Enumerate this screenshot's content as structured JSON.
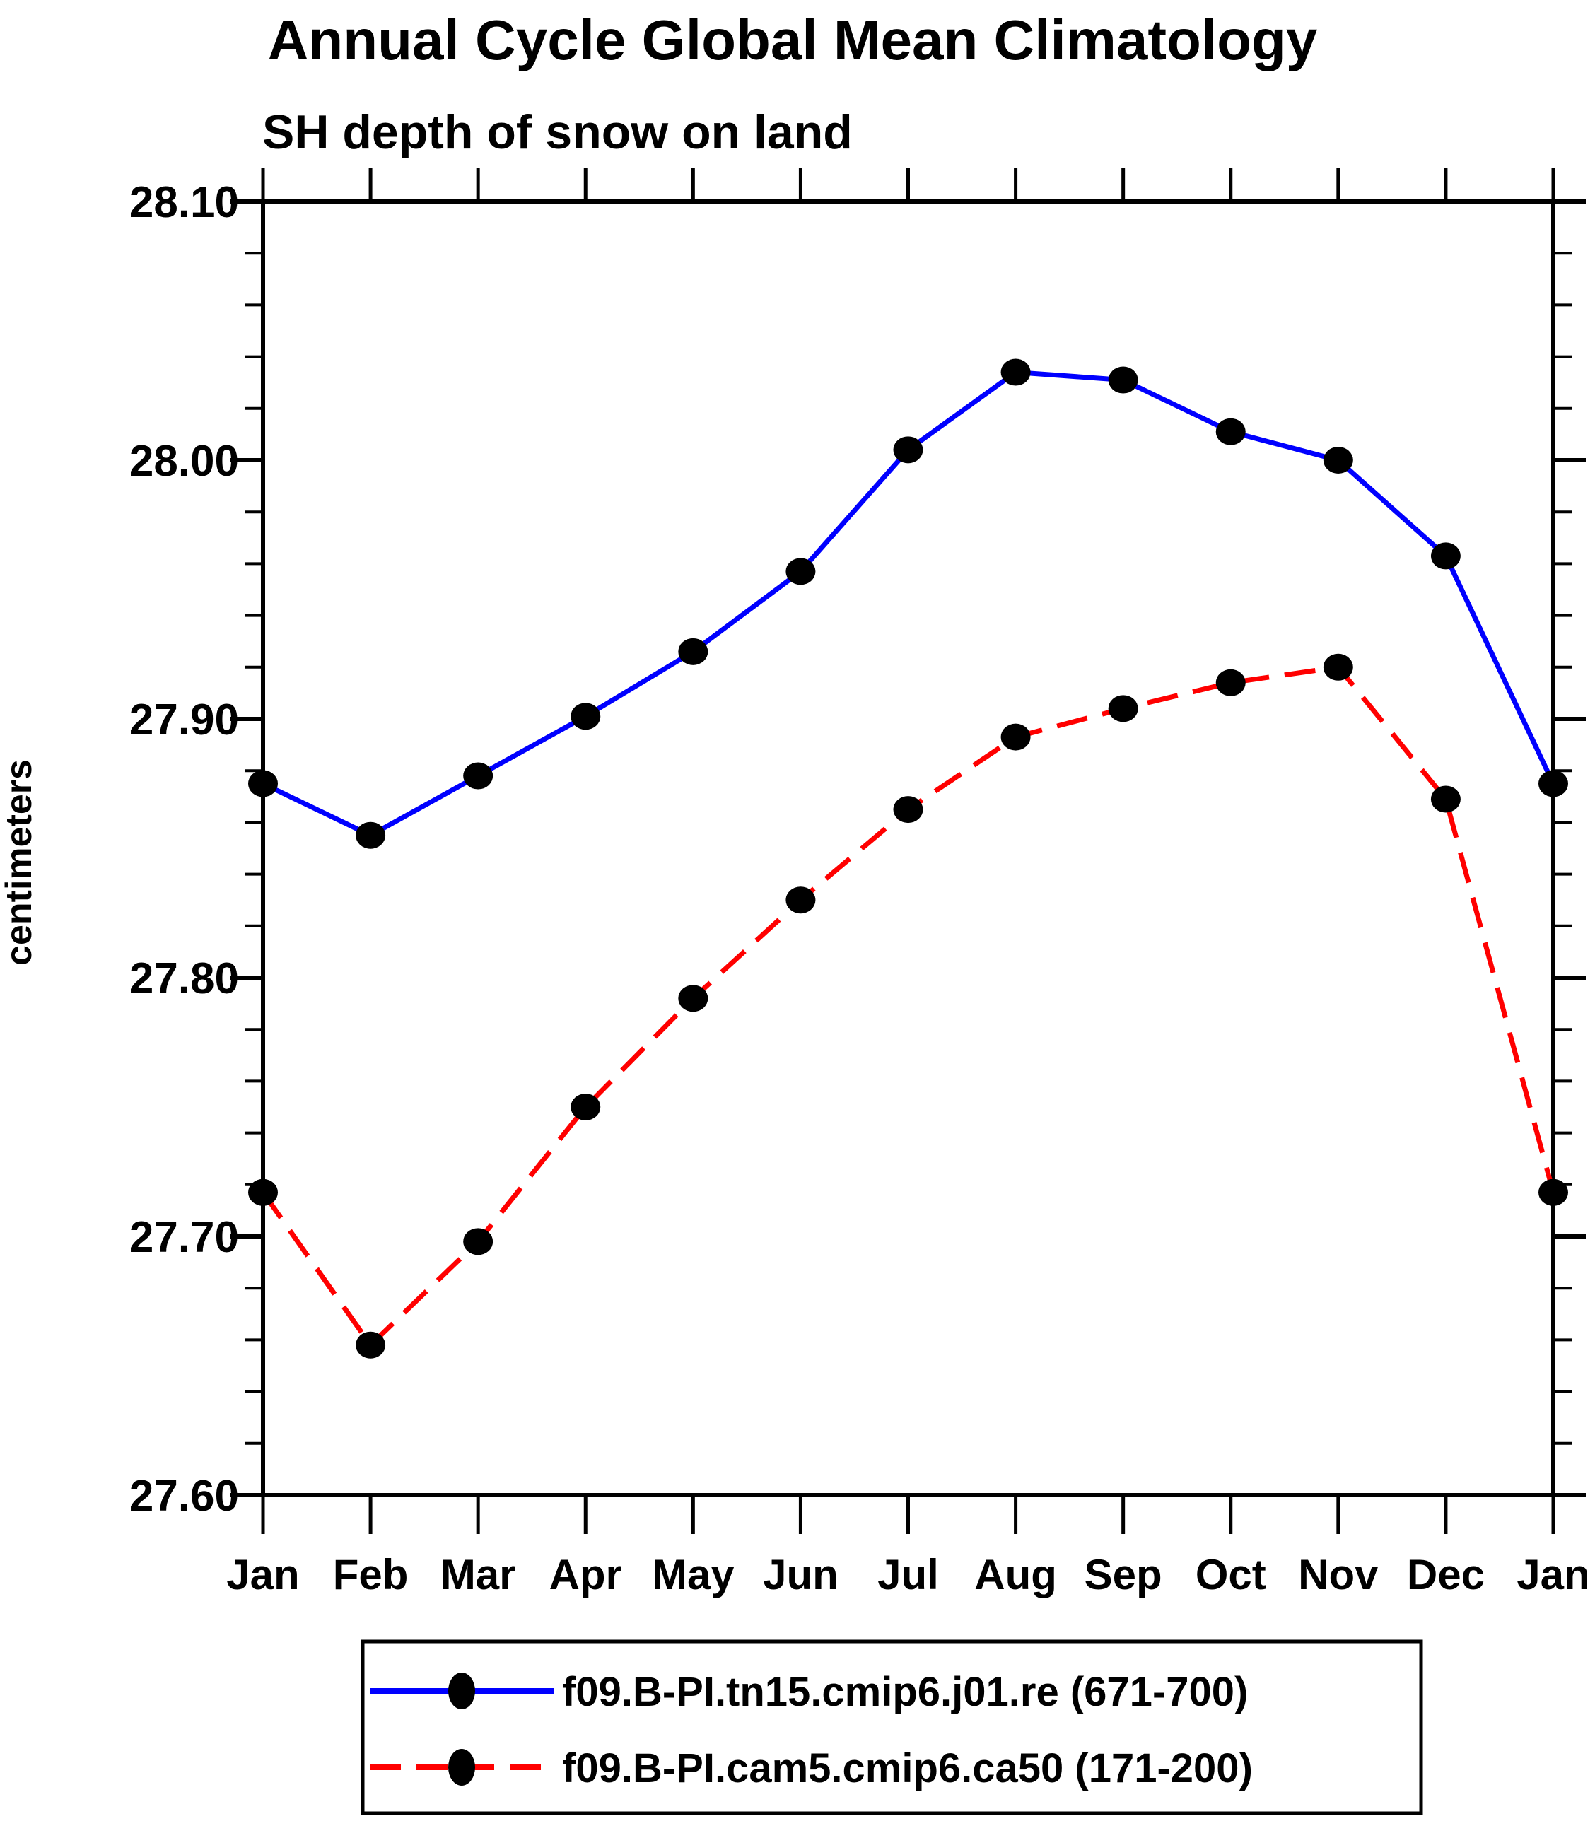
{
  "chart_data": {
    "type": "line",
    "title": "Annual Cycle Global Mean Climatology",
    "subtitle": "SH depth of snow on land",
    "ylabel": "centimeters",
    "xlabel": "",
    "categories": [
      "Jan",
      "Feb",
      "Mar",
      "Apr",
      "May",
      "Jun",
      "Jul",
      "Aug",
      "Sep",
      "Oct",
      "Nov",
      "Dec",
      "Jan"
    ],
    "ylim": [
      27.6,
      28.1
    ],
    "y_major_ticks": [
      28.1,
      28.0,
      27.9,
      27.8,
      27.7,
      27.6
    ],
    "y_tick_labels": [
      "28.10",
      "28.00",
      "27.90",
      "27.80",
      "27.70",
      "27.60"
    ],
    "y_minor_step": 0.02,
    "grid": false,
    "legend_position": "bottom",
    "axis_color": "#000000",
    "background_color": "#ffffff",
    "series": [
      {
        "name": "f09.B-PI.tn15.cmip6.j01.re (671-700)",
        "color": "#0000ff",
        "style": "solid",
        "marker": "filled-circle",
        "marker_color": "#000000",
        "values": [
          27.875,
          27.855,
          27.878,
          27.901,
          27.926,
          27.957,
          28.004,
          28.034,
          28.031,
          28.011,
          28.0,
          27.963,
          27.875
        ]
      },
      {
        "name": "f09.B-PI.cam5.cmip6.ca50 (171-200)",
        "color": "#ff0000",
        "style": "dashed",
        "marker": "filled-circle",
        "marker_color": "#000000",
        "values": [
          27.717,
          27.658,
          27.698,
          27.75,
          27.792,
          27.83,
          27.865,
          27.893,
          27.904,
          27.914,
          27.92,
          27.869,
          27.717
        ]
      }
    ]
  }
}
